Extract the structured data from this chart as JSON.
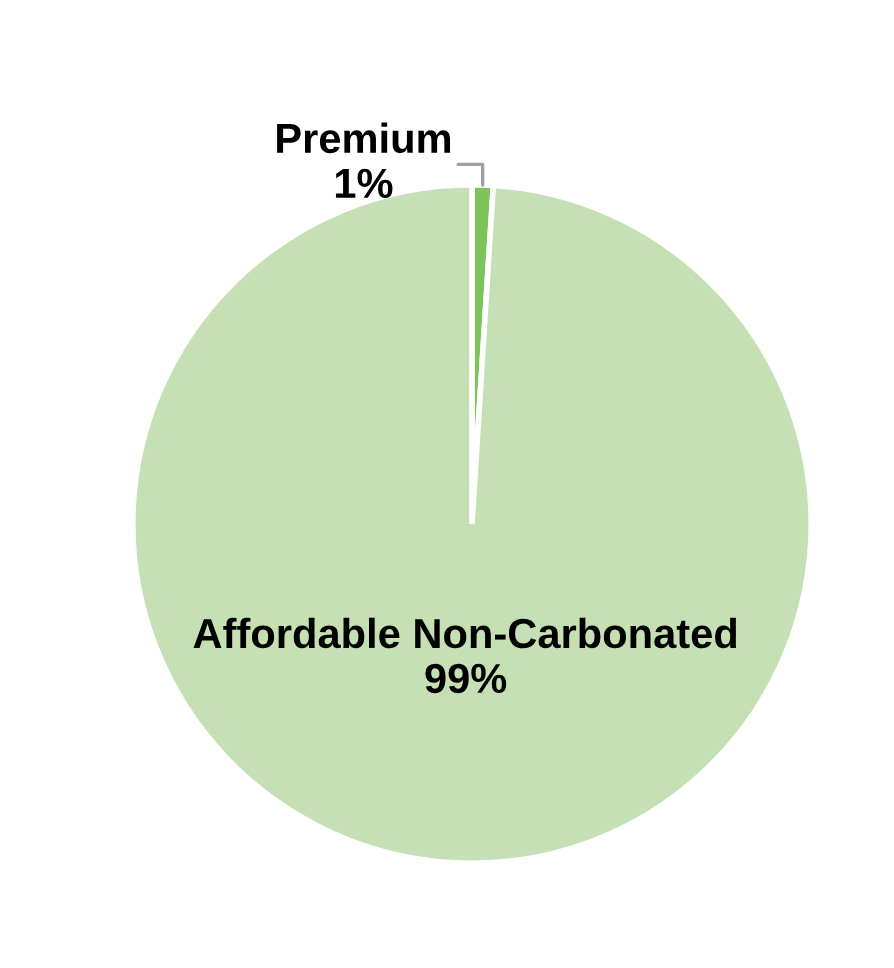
{
  "chart_data": {
    "type": "pie",
    "categories": [
      "Premium",
      "Affordable Non-Carbonated"
    ],
    "values": [
      1,
      99
    ],
    "colors": [
      "#7cc45a",
      "#c5e0b4"
    ],
    "value_labels": [
      "1%",
      "99%"
    ],
    "legend": false
  }
}
